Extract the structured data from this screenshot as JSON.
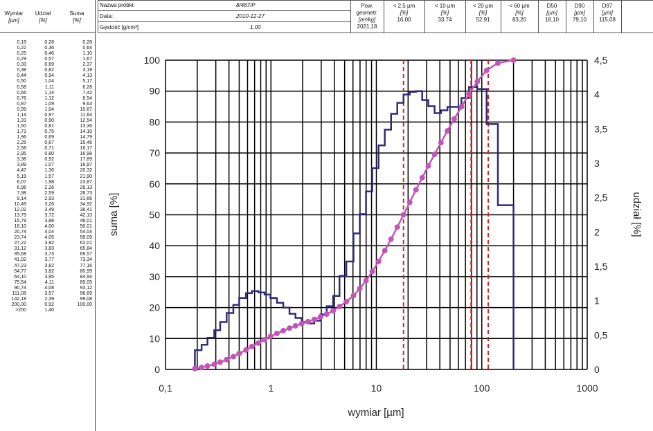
{
  "left_table": {
    "headers": [
      {
        "label": "Wymiar",
        "unit": "[µm]"
      },
      {
        "label": "Udział",
        "unit": "[%]"
      },
      {
        "label": "Suma",
        "unit": "[%]"
      }
    ],
    "rows": [
      [
        "0,19",
        "0,28",
        "0,28"
      ],
      [
        "0,22",
        "0,36",
        "0,64"
      ],
      [
        "0,25",
        "0,46",
        "1,10"
      ],
      [
        "0,29",
        "0,57",
        "1,67"
      ],
      [
        "0,33",
        "0,69",
        "2,37"
      ],
      [
        "0,38",
        "0,82",
        "3,19"
      ],
      [
        "0,44",
        "0,94",
        "4,13"
      ],
      [
        "0,50",
        "1,04",
        "5,17"
      ],
      [
        "0,58",
        "1,11",
        "6,28"
      ],
      [
        "0,66",
        "1,14",
        "7,42"
      ],
      [
        "0,76",
        "1,12",
        "8,54"
      ],
      [
        "0,87",
        "1,09",
        "9,63"
      ],
      [
        "0,99",
        "1,04",
        "10,67"
      ],
      [
        "1,14",
        "0,97",
        "11,64"
      ],
      [
        "1,31",
        "0,90",
        "12,54"
      ],
      [
        "1,50",
        "0,81",
        "13,36"
      ],
      [
        "1,71",
        "0,75",
        "14,10"
      ],
      [
        "1,96",
        "0,69",
        "14,79"
      ],
      [
        "2,25",
        "0,67",
        "15,46"
      ],
      [
        "2,58",
        "0,71",
        "16,17"
      ],
      [
        "2,95",
        "0,80",
        "16,98"
      ],
      [
        "3,38",
        "0,92",
        "17,89"
      ],
      [
        "3,89",
        "1,07",
        "18,97"
      ],
      [
        "4,47",
        "1,36",
        "20,32"
      ],
      [
        "5,19",
        "1,57",
        "21,90"
      ],
      [
        "6,07",
        "1,98",
        "23,87"
      ],
      [
        "6,96",
        "2,26",
        "26,13"
      ],
      [
        "7,98",
        "2,59",
        "28,73"
      ],
      [
        "9,14",
        "2,93",
        "31,66"
      ],
      [
        "10,49",
        "3,26",
        "34,92"
      ],
      [
        "12,02",
        "3,49",
        "38,41"
      ],
      [
        "13,79",
        "3,72",
        "42,13"
      ],
      [
        "15,79",
        "3,88",
        "46,01"
      ],
      [
        "18,10",
        "4,00",
        "50,01"
      ],
      [
        "20,74",
        "4,04",
        "54,04"
      ],
      [
        "23,74",
        "4,05",
        "58,09"
      ],
      [
        "27,22",
        "3,92",
        "62,01"
      ],
      [
        "31,12",
        "3,83",
        "65,84"
      ],
      [
        "35,68",
        "3,73",
        "69,57"
      ],
      [
        "41,02",
        "3,77",
        "73,34"
      ],
      [
        "47,23",
        "3,82",
        "77,16"
      ],
      [
        "54,77",
        "3,82",
        "80,99"
      ],
      [
        "64,10",
        "3,95",
        "84,94"
      ],
      [
        "75,54",
        "4,11",
        "89,05"
      ],
      [
        "90,74",
        "4,08",
        "93,12"
      ],
      [
        "111,08",
        "3,57",
        "96,69"
      ],
      [
        "142,18",
        "2,39",
        "99,08"
      ],
      [
        "200,00",
        "0,92",
        "100,00"
      ],
      [
        ">200",
        "1,40",
        ""
      ]
    ]
  },
  "sample": {
    "name_label": "Nazwa próbki:",
    "name_value": "8/487/P",
    "date_label": "Data:",
    "date_value": "2010-12-27",
    "density_label": "Gęstość [g/cm³]",
    "density_value": "1,00"
  },
  "params": [
    {
      "label": "Pow. geometr.",
      "unit": "[m²/kg]",
      "value": "2021,18"
    },
    {
      "label": "< 2,5 µm",
      "unit": "[%]",
      "value": "16,00"
    },
    {
      "label": "< 10 µm",
      "unit": "[%]",
      "value": "33,74"
    },
    {
      "label": "< 20 µm",
      "unit": "[%]",
      "value": "52,91"
    },
    {
      "label": "< 60 µm",
      "unit": "[%]",
      "value": "83,20"
    },
    {
      "label": "D50",
      "unit": "[µm]",
      "value": "18,10"
    },
    {
      "label": "D90",
      "unit": "[µm]",
      "value": "79,10"
    },
    {
      "label": "D97",
      "unit": "[µm]",
      "value": "115,08"
    }
  ],
  "chart_data": {
    "type": "line",
    "x_scale": "log",
    "xlim": [
      0.1,
      1000
    ],
    "xlabel": "wymiar [µm]",
    "ylabel_left": "suma [%]",
    "ylabel_right": "udział [%]",
    "ylim_left": [
      0,
      100
    ],
    "ylim_right": [
      0,
      4.5
    ],
    "x_ticks": [
      "0,1",
      "1",
      "10",
      "100",
      "1000"
    ],
    "y_ticks_left": [
      "0",
      "10",
      "20",
      "30",
      "40",
      "50",
      "60",
      "70",
      "80",
      "90",
      "100"
    ],
    "y_ticks_right": [
      "0",
      "0,5",
      "1",
      "1,5",
      "2",
      "2,5",
      "3",
      "3,5",
      "4",
      "4,5"
    ],
    "grid": true,
    "cumulative_color": "#c455b8",
    "distribution_color": "#2e2a78",
    "marker_color": "#e02020",
    "sizes": [
      0.19,
      0.22,
      0.25,
      0.29,
      0.33,
      0.38,
      0.44,
      0.5,
      0.58,
      0.66,
      0.76,
      0.87,
      0.99,
      1.14,
      1.31,
      1.5,
      1.71,
      1.96,
      2.25,
      2.58,
      2.95,
      3.38,
      3.89,
      4.47,
      5.19,
      6.07,
      6.96,
      7.98,
      9.14,
      10.49,
      12.02,
      13.79,
      15.79,
      18.1,
      20.74,
      23.74,
      27.22,
      31.12,
      35.68,
      41.02,
      47.23,
      54.77,
      64.1,
      75.54,
      90.74,
      111.08,
      142.18,
      200.0
    ],
    "udzial": [
      0.28,
      0.36,
      0.46,
      0.57,
      0.69,
      0.82,
      0.94,
      1.04,
      1.11,
      1.14,
      1.12,
      1.09,
      1.04,
      0.97,
      0.9,
      0.81,
      0.75,
      0.69,
      0.67,
      0.71,
      0.8,
      0.92,
      1.07,
      1.36,
      1.57,
      1.98,
      2.26,
      2.59,
      2.93,
      3.26,
      3.49,
      3.72,
      3.88,
      4.0,
      4.04,
      4.05,
      3.92,
      3.83,
      3.73,
      3.77,
      3.82,
      3.82,
      3.95,
      4.11,
      4.08,
      3.57,
      2.39,
      0.92
    ],
    "suma": [
      0.28,
      0.64,
      1.1,
      1.67,
      2.37,
      3.19,
      4.13,
      5.17,
      6.28,
      7.42,
      8.54,
      9.63,
      10.67,
      11.64,
      12.54,
      13.36,
      14.1,
      14.79,
      15.46,
      16.17,
      16.98,
      17.89,
      18.97,
      20.32,
      21.9,
      23.87,
      26.13,
      28.73,
      31.66,
      34.92,
      38.41,
      42.13,
      46.01,
      50.01,
      54.04,
      58.09,
      62.01,
      65.84,
      69.57,
      73.34,
      77.16,
      80.99,
      84.94,
      89.05,
      93.12,
      96.69,
      99.08,
      100.0
    ],
    "markers_x": [
      18.1,
      79.1,
      115.08
    ]
  }
}
